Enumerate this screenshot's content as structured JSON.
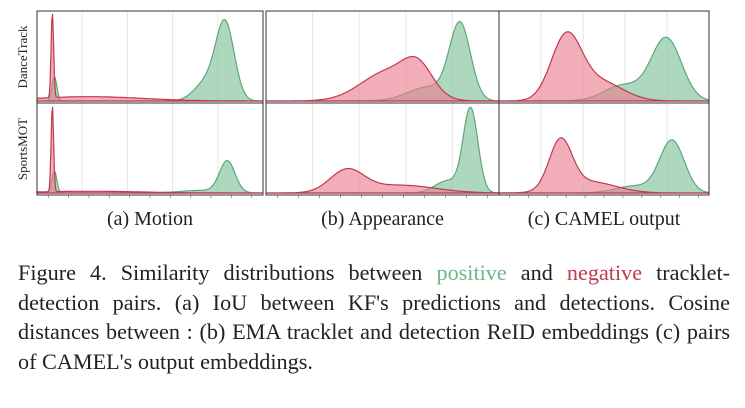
{
  "rows": [
    "DanceTrack",
    "SportsMOT"
  ],
  "panel_titles": [
    "(a) Motion",
    "(b) Appearance",
    "(c) CAMEL output"
  ],
  "caption": {
    "label": "Figure 4.",
    "text_a": "Similarity distributions between",
    "positive": "positive",
    "text_b": "and",
    "negative": "negative",
    "text_c": "tracklet-detection pairs. (a) IoU between KF's predictions and detections. Cosine distances between : (b) EMA tracklet and detection ReID embeddings (c) pairs of CAMEL's output embeddings."
  },
  "colors": {
    "positive_fill": "#8fc9a3",
    "positive_line": "#5da77a",
    "negative_fill": "#ea7d8c",
    "negative_line": "#c0394f"
  },
  "chart_data": {
    "type": "area",
    "title": "Similarity distributions between positive and negative tracklet-detection pairs",
    "series_names": [
      "positive",
      "negative"
    ],
    "x_range": [
      0,
      1
    ],
    "y_range": [
      0,
      1
    ],
    "panels": [
      {
        "row": "DanceTrack",
        "column": "(a) Motion",
        "positive": [
          {
            "mu": 0.03,
            "sigma": 0.012,
            "amp": 0.28
          },
          {
            "mu": 0.87,
            "sigma": 0.045,
            "amp": 0.86
          },
          {
            "mu": 0.78,
            "sigma": 0.06,
            "amp": 0.22
          }
        ],
        "negative": [
          {
            "mu": 0.02,
            "sigma": 0.006,
            "amp": 1.0
          },
          {
            "mu": 0.2,
            "sigma": 0.26,
            "amp": 0.05
          }
        ]
      },
      {
        "row": "DanceTrack",
        "column": "(b) Appearance",
        "positive": [
          {
            "mu": 0.87,
            "sigma": 0.05,
            "amp": 0.86
          },
          {
            "mu": 0.72,
            "sigma": 0.1,
            "amp": 0.16
          }
        ],
        "negative": [
          {
            "mu": 0.67,
            "sigma": 0.07,
            "amp": 0.3
          },
          {
            "mu": 0.53,
            "sigma": 0.13,
            "amp": 0.34
          }
        ]
      },
      {
        "row": "DanceTrack",
        "column": "(c) CAMEL output",
        "positive": [
          {
            "mu": 0.83,
            "sigma": 0.08,
            "amp": 0.72
          },
          {
            "mu": 0.6,
            "sigma": 0.1,
            "amp": 0.18
          }
        ],
        "negative": [
          {
            "mu": 0.3,
            "sigma": 0.08,
            "amp": 0.72
          },
          {
            "mu": 0.48,
            "sigma": 0.12,
            "amp": 0.22
          }
        ]
      },
      {
        "row": "SportsMOT",
        "column": "(a) Motion",
        "positive": [
          {
            "mu": 0.03,
            "sigma": 0.012,
            "amp": 0.25
          },
          {
            "mu": 0.88,
            "sigma": 0.038,
            "amp": 0.36
          },
          {
            "mu": 0.75,
            "sigma": 0.1,
            "amp": 0.03
          }
        ],
        "negative": [
          {
            "mu": 0.02,
            "sigma": 0.006,
            "amp": 1.0
          },
          {
            "mu": 0.2,
            "sigma": 0.26,
            "amp": 0.02
          }
        ]
      },
      {
        "row": "SportsMOT",
        "column": "(b) Appearance",
        "positive": [
          {
            "mu": 0.92,
            "sigma": 0.035,
            "amp": 0.96
          },
          {
            "mu": 0.81,
            "sigma": 0.06,
            "amp": 0.14
          }
        ],
        "negative": [
          {
            "mu": 0.33,
            "sigma": 0.08,
            "amp": 0.25
          },
          {
            "mu": 0.58,
            "sigma": 0.17,
            "amp": 0.09
          }
        ]
      },
      {
        "row": "SportsMOT",
        "column": "(c) CAMEL output",
        "positive": [
          {
            "mu": 0.86,
            "sigma": 0.065,
            "amp": 0.6
          },
          {
            "mu": 0.66,
            "sigma": 0.1,
            "amp": 0.08
          }
        ],
        "negative": [
          {
            "mu": 0.27,
            "sigma": 0.06,
            "amp": 0.56
          },
          {
            "mu": 0.42,
            "sigma": 0.14,
            "amp": 0.13
          }
        ]
      }
    ]
  }
}
